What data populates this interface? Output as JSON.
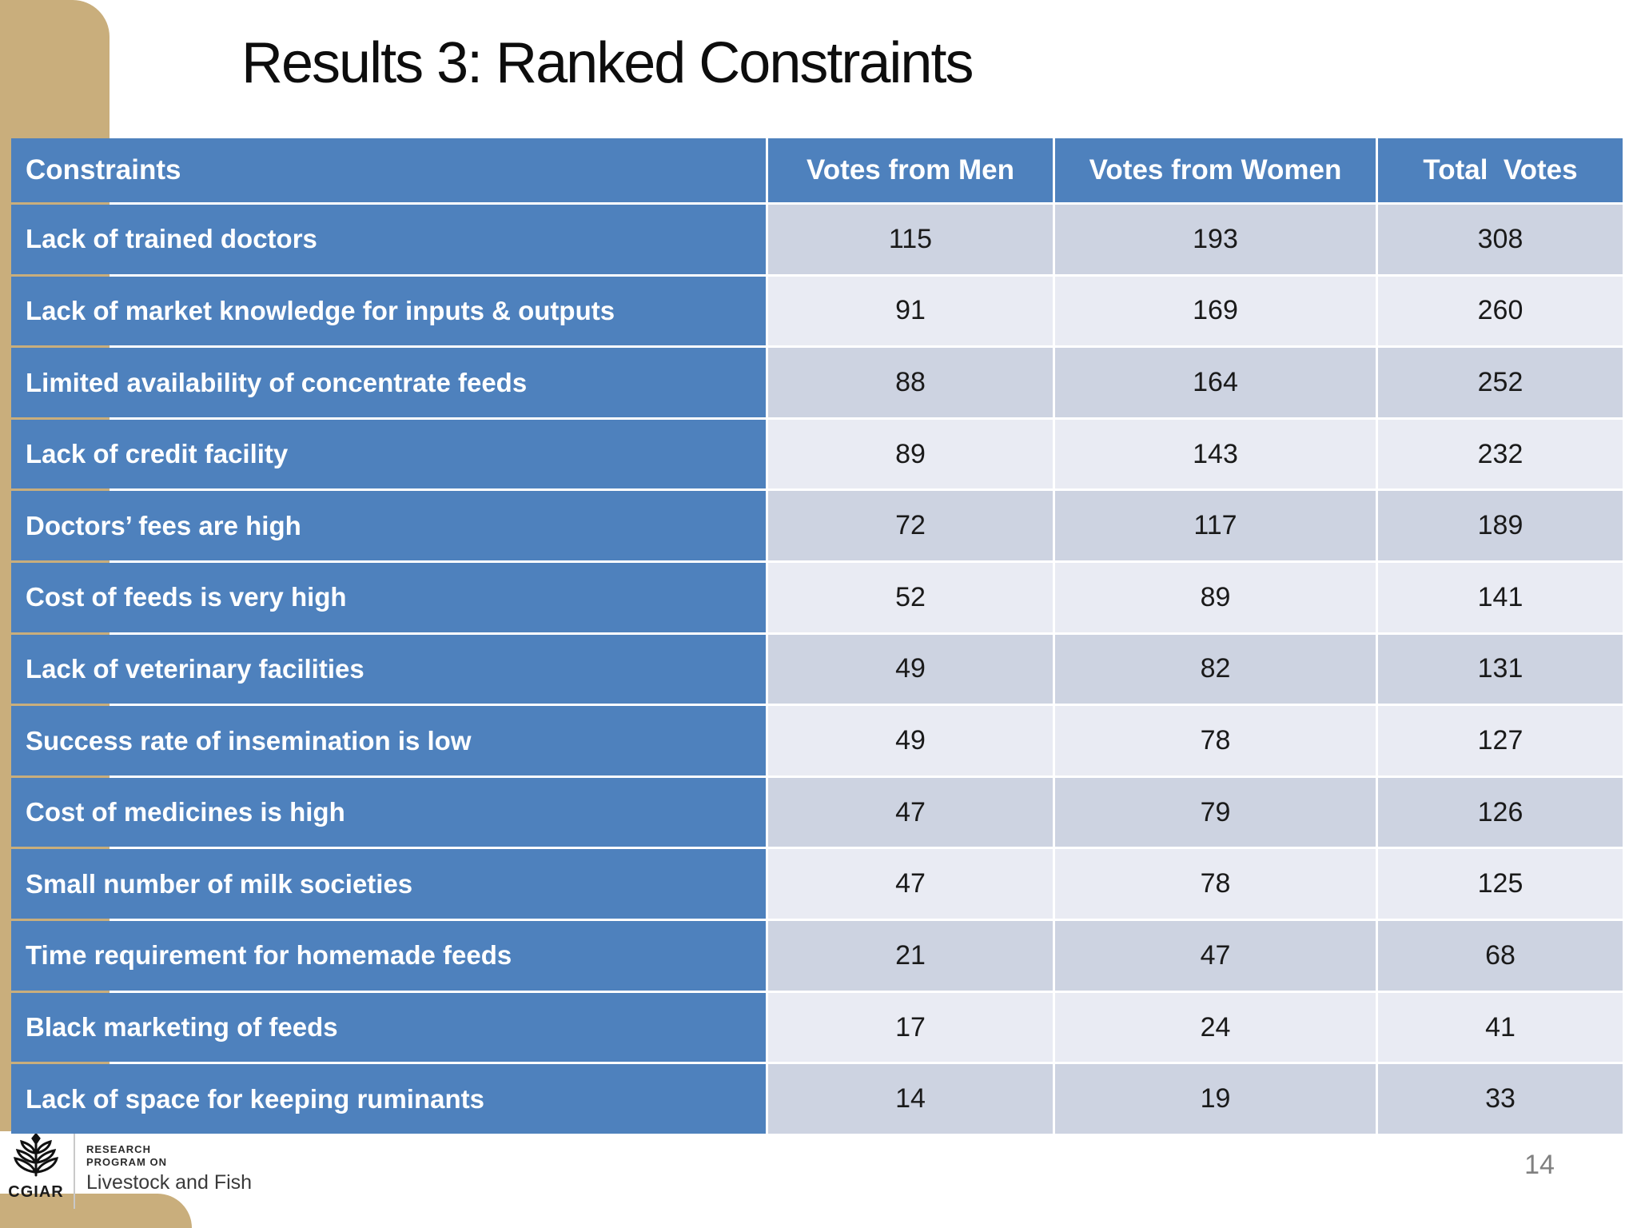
{
  "slide": {
    "title": "Results 3: Ranked Constraints",
    "page_number": "14",
    "colors": {
      "accent_tan": "#c9ae7c",
      "header_blue": "#4e81bd",
      "band_dark": "#cdd3e1",
      "band_light": "#e9ebf3"
    }
  },
  "table": {
    "columns": [
      "Constraints",
      "Votes from Men",
      "Votes from Women",
      "Total  Votes"
    ],
    "rows": [
      {
        "label": "Lack of trained doctors",
        "men": "115",
        "women": "193",
        "total": "308"
      },
      {
        "label": "Lack of market knowledge for inputs & outputs",
        "men": "91",
        "women": "169",
        "total": "260"
      },
      {
        "label": "Limited availability of concentrate feeds",
        "men": "88",
        "women": "164",
        "total": "252"
      },
      {
        "label": "Lack of credit facility",
        "men": "89",
        "women": "143",
        "total": "232"
      },
      {
        "label": "Doctors’ fees are high",
        "men": "72",
        "women": "117",
        "total": "189"
      },
      {
        "label": "Cost of feeds is very high",
        "men": "52",
        "women": "89",
        "total": "141"
      },
      {
        "label": "Lack of veterinary facilities",
        "men": "49",
        "women": "82",
        "total": "131"
      },
      {
        "label": "Success rate of insemination is low",
        "men": "49",
        "women": "78",
        "total": "127"
      },
      {
        "label": "Cost of medicines is high",
        "men": "47",
        "women": "79",
        "total": "126"
      },
      {
        "label": "Small number of milk societies",
        "men": "47",
        "women": "78",
        "total": "125"
      },
      {
        "label": "Time requirement for homemade feeds",
        "men": "21",
        "women": "47",
        "total": "68"
      },
      {
        "label": "Black marketing of feeds",
        "men": "17",
        "women": "24",
        "total": "41"
      },
      {
        "label": "Lack of space for keeping ruminants",
        "men": "14",
        "women": "19",
        "total": "33"
      }
    ]
  },
  "chart_data": {
    "type": "table",
    "title": "Results 3: Ranked Constraints",
    "categories": [
      "Lack of trained doctors",
      "Lack of market knowledge for inputs & outputs",
      "Limited availability of concentrate feeds",
      "Lack of credit facility",
      "Doctors’ fees are high",
      "Cost of feeds is very high",
      "Lack of veterinary facilities",
      "Success rate of insemination is low",
      "Cost of medicines is high",
      "Small number of milk societies",
      "Time requirement for homemade feeds",
      "Black marketing of feeds",
      "Lack of space for keeping ruminants"
    ],
    "series": [
      {
        "name": "Votes from Men",
        "values": [
          115,
          91,
          88,
          89,
          72,
          52,
          49,
          49,
          47,
          47,
          21,
          17,
          14
        ]
      },
      {
        "name": "Votes from Women",
        "values": [
          193,
          169,
          164,
          143,
          117,
          89,
          82,
          78,
          79,
          78,
          47,
          24,
          19
        ]
      },
      {
        "name": "Total Votes",
        "values": [
          308,
          260,
          252,
          232,
          189,
          141,
          131,
          127,
          126,
          125,
          68,
          41,
          33
        ]
      }
    ]
  },
  "footer": {
    "org": "CGIAR",
    "program_line1": "RESEARCH",
    "program_line2": "PROGRAM ON",
    "program_name": "Livestock and Fish"
  }
}
